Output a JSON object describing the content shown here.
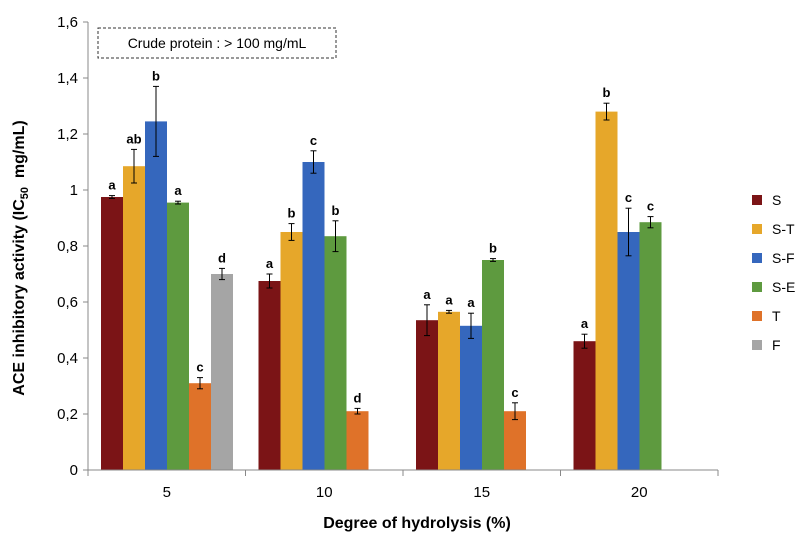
{
  "chart_data": {
    "type": "bar",
    "xlabel": "Degree of hydrolysis (%)",
    "ylabel_main": "ACE inhibitory activity (IC",
    "ylabel_sub": "50",
    "ylabel_tail": "  mg/mL)",
    "ylim": [
      0,
      1.6
    ],
    "yticks": [
      "0",
      "0,2",
      "0,4",
      "0,6",
      "0,8",
      "1",
      "1,2",
      "1,4",
      "1,6"
    ],
    "categories": [
      "5",
      "10",
      "15",
      "20"
    ],
    "annotation": "Crude protein : > 100 mg/mL",
    "legend_position": "right",
    "series": [
      {
        "name": "S",
        "color": "#7b1416",
        "values": [
          0.975,
          0.675,
          0.535,
          0.46
        ],
        "errors": [
          0.005,
          0.025,
          0.055,
          0.025
        ],
        "letters": [
          "a",
          "a",
          "a",
          "a"
        ]
      },
      {
        "name": "S-T",
        "color": "#e6a72a",
        "values": [
          1.085,
          0.85,
          0.565,
          1.28
        ],
        "errors": [
          0.06,
          0.03,
          0.005,
          0.03
        ],
        "letters": [
          "ab",
          "b",
          "a",
          "b"
        ]
      },
      {
        "name": "S-F",
        "color": "#3567bd",
        "values": [
          1.245,
          1.1,
          0.515,
          0.85
        ],
        "errors": [
          0.125,
          0.04,
          0.045,
          0.085
        ],
        "letters": [
          "b",
          "c",
          "a",
          "c"
        ]
      },
      {
        "name": "S-E",
        "color": "#5e9a3f",
        "values": [
          0.955,
          0.835,
          0.75,
          0.885
        ],
        "errors": [
          0.005,
          0.055,
          0.005,
          0.02
        ],
        "letters": [
          "a",
          "b",
          "b",
          "c"
        ]
      },
      {
        "name": "T",
        "color": "#df7229",
        "values": [
          0.31,
          0.21,
          0.21,
          null
        ],
        "errors": [
          0.02,
          0.01,
          0.03,
          null
        ],
        "letters": [
          "c",
          "d",
          "c",
          null
        ]
      },
      {
        "name": "F",
        "color": "#a5a5a5",
        "values": [
          0.7,
          null,
          null,
          null
        ],
        "errors": [
          0.02,
          null,
          null,
          null
        ],
        "letters": [
          "d",
          null,
          null,
          null
        ]
      }
    ]
  }
}
